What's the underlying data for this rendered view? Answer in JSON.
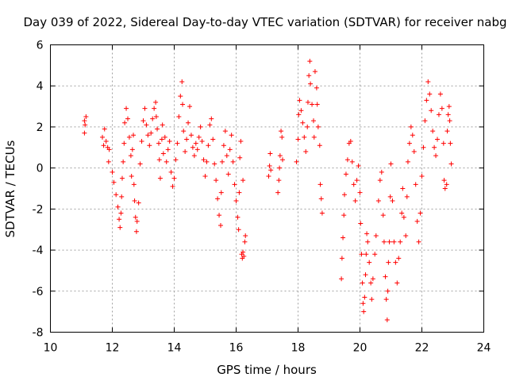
{
  "chart_data": {
    "type": "scatter",
    "title": "Day 039 of 2022, Sidereal Day-to-day VTEC variation (SDTVAR) for receiver nabg",
    "xlabel": "GPS time / hours",
    "ylabel": "SDTVAR / TECUs",
    "xlim": [
      10,
      24
    ],
    "ylim": [
      -8,
      6
    ],
    "xticks": [
      10,
      12,
      14,
      16,
      18,
      20,
      22,
      24
    ],
    "yticks": [
      -8,
      -6,
      -4,
      -2,
      0,
      2,
      4,
      6
    ],
    "x_tick_labels": [
      "10",
      "12",
      "14",
      "16",
      "18",
      "20",
      "22",
      "24"
    ],
    "y_tick_labels": [
      "-8",
      "-6",
      "-4",
      "-2",
      "0",
      "2",
      "4",
      "6"
    ],
    "grid": true,
    "marker": "+",
    "series": [
      {
        "name": "SDTVAR",
        "color": "#ff0000",
        "points": [
          [
            11.1,
            1.7
          ],
          [
            11.12,
            2.1
          ],
          [
            11.15,
            2.5
          ],
          [
            11.1,
            2.3
          ],
          [
            11.68,
            1.5
          ],
          [
            11.75,
            1.9
          ],
          [
            11.8,
            1.3
          ],
          [
            11.85,
            1.0
          ],
          [
            11.88,
            0.3
          ],
          [
            11.9,
            0.9
          ],
          [
            11.72,
            1.1
          ],
          [
            12.0,
            -0.2
          ],
          [
            12.05,
            -0.7
          ],
          [
            12.12,
            -1.3
          ],
          [
            12.18,
            -1.9
          ],
          [
            12.22,
            -2.5
          ],
          [
            12.25,
            -2.9
          ],
          [
            12.28,
            -2.2
          ],
          [
            12.3,
            -1.4
          ],
          [
            12.32,
            -0.5
          ],
          [
            12.35,
            0.3
          ],
          [
            12.38,
            1.2
          ],
          [
            12.4,
            2.2
          ],
          [
            12.45,
            2.9
          ],
          [
            12.5,
            2.4
          ],
          [
            12.55,
            1.5
          ],
          [
            12.6,
            0.6
          ],
          [
            12.62,
            -0.4
          ],
          [
            12.65,
            0.9
          ],
          [
            12.68,
            1.6
          ],
          [
            12.7,
            -0.8
          ],
          [
            12.72,
            -1.6
          ],
          [
            12.75,
            -2.4
          ],
          [
            12.78,
            -3.1
          ],
          [
            12.8,
            -2.6
          ],
          [
            12.85,
            -1.7
          ],
          [
            12.9,
            0.2
          ],
          [
            12.95,
            1.3
          ],
          [
            13.0,
            2.3
          ],
          [
            13.05,
            2.9
          ],
          [
            13.1,
            2.1
          ],
          [
            13.15,
            1.6
          ],
          [
            13.2,
            1.1
          ],
          [
            13.25,
            1.7
          ],
          [
            13.3,
            2.4
          ],
          [
            13.35,
            2.9
          ],
          [
            13.4,
            3.2
          ],
          [
            13.42,
            2.5
          ],
          [
            13.45,
            1.9
          ],
          [
            13.5,
            1.2
          ],
          [
            13.52,
            0.4
          ],
          [
            13.55,
            -0.5
          ],
          [
            13.6,
            1.4
          ],
          [
            13.62,
            2.1
          ],
          [
            13.65,
            0.7
          ],
          [
            13.7,
            1.5
          ],
          [
            13.75,
            0.3
          ],
          [
            13.8,
            0.9
          ],
          [
            13.85,
            1.3
          ],
          [
            13.9,
            -0.2
          ],
          [
            13.95,
            -0.9
          ],
          [
            14.0,
            -0.5
          ],
          [
            14.05,
            0.4
          ],
          [
            14.1,
            1.2
          ],
          [
            14.15,
            2.5
          ],
          [
            14.2,
            3.5
          ],
          [
            14.25,
            4.2
          ],
          [
            14.27,
            3.1
          ],
          [
            14.3,
            1.8
          ],
          [
            14.35,
            0.8
          ],
          [
            14.4,
            1.4
          ],
          [
            14.45,
            2.2
          ],
          [
            14.5,
            3.0
          ],
          [
            14.55,
            1.6
          ],
          [
            14.6,
            1.0
          ],
          [
            14.65,
            0.6
          ],
          [
            14.7,
            1.2
          ],
          [
            14.75,
            0.9
          ],
          [
            14.8,
            1.5
          ],
          [
            14.85,
            2.0
          ],
          [
            14.9,
            1.3
          ],
          [
            14.95,
            0.4
          ],
          [
            15.0,
            -0.4
          ],
          [
            15.05,
            0.3
          ],
          [
            15.1,
            1.1
          ],
          [
            15.15,
            2.1
          ],
          [
            15.2,
            2.4
          ],
          [
            15.25,
            1.4
          ],
          [
            15.3,
            0.2
          ],
          [
            15.35,
            -0.6
          ],
          [
            15.4,
            -1.5
          ],
          [
            15.45,
            -2.3
          ],
          [
            15.5,
            -2.8
          ],
          [
            15.52,
            -1.2
          ],
          [
            15.55,
            0.3
          ],
          [
            15.6,
            1.1
          ],
          [
            15.65,
            1.8
          ],
          [
            15.7,
            0.6
          ],
          [
            15.75,
            -0.3
          ],
          [
            15.8,
            0.9
          ],
          [
            15.85,
            1.6
          ],
          [
            15.9,
            0.3
          ],
          [
            15.95,
            -0.8
          ],
          [
            16.0,
            -1.6
          ],
          [
            16.05,
            -2.4
          ],
          [
            16.08,
            -3.0
          ],
          [
            16.1,
            -1.2
          ],
          [
            16.12,
            0.5
          ],
          [
            16.15,
            1.3
          ],
          [
            16.18,
            -4.2
          ],
          [
            16.2,
            -4.4
          ],
          [
            16.22,
            -4.1
          ],
          [
            16.25,
            -4.3
          ],
          [
            16.28,
            -3.6
          ],
          [
            16.3,
            -3.3
          ],
          [
            16.22,
            -0.6
          ],
          [
            17.05,
            -0.4
          ],
          [
            17.08,
            0.1
          ],
          [
            17.1,
            0.7
          ],
          [
            17.12,
            -0.1
          ],
          [
            17.35,
            -1.2
          ],
          [
            17.38,
            -0.6
          ],
          [
            17.4,
            0.0
          ],
          [
            17.42,
            0.6
          ],
          [
            17.45,
            1.8
          ],
          [
            17.48,
            1.5
          ],
          [
            17.5,
            0.4
          ],
          [
            17.95,
            0.3
          ],
          [
            18.0,
            1.4
          ],
          [
            18.02,
            2.6
          ],
          [
            18.05,
            3.3
          ],
          [
            18.1,
            2.8
          ],
          [
            18.15,
            2.2
          ],
          [
            18.2,
            1.5
          ],
          [
            18.25,
            0.8
          ],
          [
            18.3,
            2.0
          ],
          [
            18.32,
            3.2
          ],
          [
            18.35,
            4.5
          ],
          [
            18.38,
            5.2
          ],
          [
            18.4,
            4.1
          ],
          [
            18.45,
            3.1
          ],
          [
            18.5,
            2.3
          ],
          [
            18.52,
            1.5
          ],
          [
            18.55,
            4.7
          ],
          [
            18.6,
            3.9
          ],
          [
            18.62,
            3.1
          ],
          [
            18.65,
            2.0
          ],
          [
            18.7,
            1.1
          ],
          [
            18.72,
            -0.8
          ],
          [
            18.75,
            -1.5
          ],
          [
            18.78,
            -2.2
          ],
          [
            19.4,
            -5.4
          ],
          [
            19.42,
            -4.4
          ],
          [
            19.45,
            -3.4
          ],
          [
            19.48,
            -2.3
          ],
          [
            19.5,
            -1.3
          ],
          [
            19.55,
            -0.3
          ],
          [
            19.6,
            0.4
          ],
          [
            19.65,
            1.2
          ],
          [
            19.7,
            1.3
          ],
          [
            19.75,
            0.3
          ],
          [
            19.8,
            -0.8
          ],
          [
            19.85,
            -1.6
          ],
          [
            19.9,
            -0.6
          ],
          [
            19.95,
            0.1
          ],
          [
            20.0,
            -1.2
          ],
          [
            20.02,
            -2.7
          ],
          [
            20.05,
            -4.2
          ],
          [
            20.08,
            -5.6
          ],
          [
            20.1,
            -6.6
          ],
          [
            20.12,
            -7.0
          ],
          [
            20.15,
            -6.3
          ],
          [
            20.18,
            -5.2
          ],
          [
            20.2,
            -4.2
          ],
          [
            20.22,
            -3.2
          ],
          [
            20.25,
            -3.6
          ],
          [
            20.3,
            -4.6
          ],
          [
            20.35,
            -5.6
          ],
          [
            20.38,
            -6.4
          ],
          [
            20.42,
            -5.4
          ],
          [
            20.48,
            -4.2
          ],
          [
            20.52,
            -3.3
          ],
          [
            20.6,
            -1.6
          ],
          [
            20.65,
            -0.6
          ],
          [
            20.7,
            -0.2
          ],
          [
            20.75,
            -2.3
          ],
          [
            20.78,
            -3.6
          ],
          [
            20.82,
            -5.3
          ],
          [
            20.85,
            -6.4
          ],
          [
            20.88,
            -7.4
          ],
          [
            20.9,
            -6.0
          ],
          [
            20.92,
            -4.6
          ],
          [
            20.95,
            -3.6
          ],
          [
            20.98,
            -1.4
          ],
          [
            21.0,
            0.2
          ],
          [
            21.05,
            -1.6
          ],
          [
            21.1,
            -3.6
          ],
          [
            21.15,
            -4.6
          ],
          [
            21.2,
            -5.6
          ],
          [
            21.25,
            -4.4
          ],
          [
            21.3,
            -3.6
          ],
          [
            21.35,
            -2.2
          ],
          [
            21.38,
            -1.0
          ],
          [
            21.42,
            -2.4
          ],
          [
            21.48,
            -3.3
          ],
          [
            21.52,
            -1.4
          ],
          [
            21.55,
            0.3
          ],
          [
            21.6,
            1.2
          ],
          [
            21.65,
            2.0
          ],
          [
            21.7,
            1.6
          ],
          [
            21.75,
            0.8
          ],
          [
            21.8,
            -0.8
          ],
          [
            21.85,
            -2.6
          ],
          [
            21.9,
            -3.6
          ],
          [
            21.95,
            -2.2
          ],
          [
            22.0,
            -0.4
          ],
          [
            22.05,
            1.0
          ],
          [
            22.1,
            2.3
          ],
          [
            22.15,
            3.3
          ],
          [
            22.2,
            4.2
          ],
          [
            22.25,
            3.6
          ],
          [
            22.3,
            2.8
          ],
          [
            22.35,
            1.8
          ],
          [
            22.4,
            1.0
          ],
          [
            22.45,
            0.6
          ],
          [
            22.5,
            1.4
          ],
          [
            22.55,
            2.6
          ],
          [
            22.6,
            3.6
          ],
          [
            22.65,
            2.9
          ],
          [
            22.7,
            1.2
          ],
          [
            22.72,
            -0.6
          ],
          [
            22.75,
            -1.0
          ],
          [
            22.8,
            -0.8
          ],
          [
            22.82,
            1.8
          ],
          [
            22.85,
            2.6
          ],
          [
            22.88,
            3.0
          ],
          [
            22.9,
            2.3
          ],
          [
            22.92,
            1.2
          ],
          [
            22.95,
            0.2
          ]
        ]
      }
    ]
  }
}
